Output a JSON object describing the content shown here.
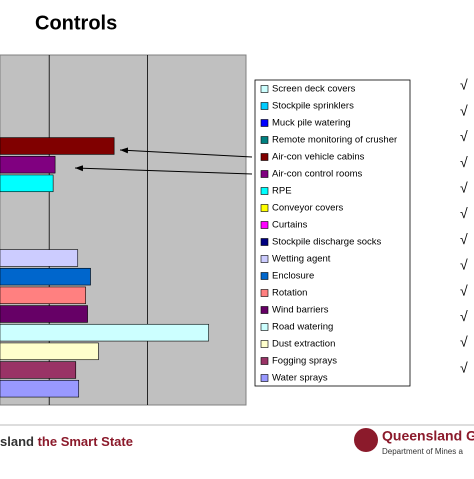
{
  "chart_data": {
    "type": "barh",
    "title": "Controls",
    "categories": [
      "Screen deck covers",
      "Stockpile sprinklers",
      "Muck pile watering",
      "Remote monitoring of crusher",
      "Air-con vehicle cabins",
      "Air-con control rooms",
      "RPE",
      "Conveyor covers",
      "Curtains",
      "Stockpile discharge socks",
      "Wetting agent",
      "Enclosure",
      "Rotation",
      "Wind barriers",
      "Road watering",
      "Dust extraction",
      "Fogging sprays",
      "Water sprays"
    ],
    "values": [
      null,
      null,
      null,
      null,
      16.6,
      10.6,
      10.4,
      null,
      null,
      null,
      12.9,
      14.2,
      13.7,
      13.9,
      26.2,
      15,
      12.7,
      13
    ],
    "colors": [
      "#ccffff",
      "#00ccff",
      "#0000ff",
      "#008080",
      "#800000",
      "#800080",
      "#00ffff",
      "#ffff00",
      "#ff00ff",
      "#000080",
      "#ccccff",
      "#0066cc",
      "#ff8080",
      "#660066",
      "#ccffff",
      "#ffffcc",
      "#993366",
      "#9999ff"
    ],
    "xlim": [
      5,
      30
    ],
    "xticks": [
      10,
      20
    ],
    "grid": true,
    "legend": "right"
  },
  "checks": [
    "√",
    "√",
    "√",
    "√",
    "√",
    "√",
    "√",
    "√",
    "√",
    "√",
    "√",
    "√"
  ],
  "footer": {
    "left_a": "sland",
    "left_b": "the Smart State",
    "logo": "Queensland Go",
    "dept": "Department of Mines a"
  }
}
